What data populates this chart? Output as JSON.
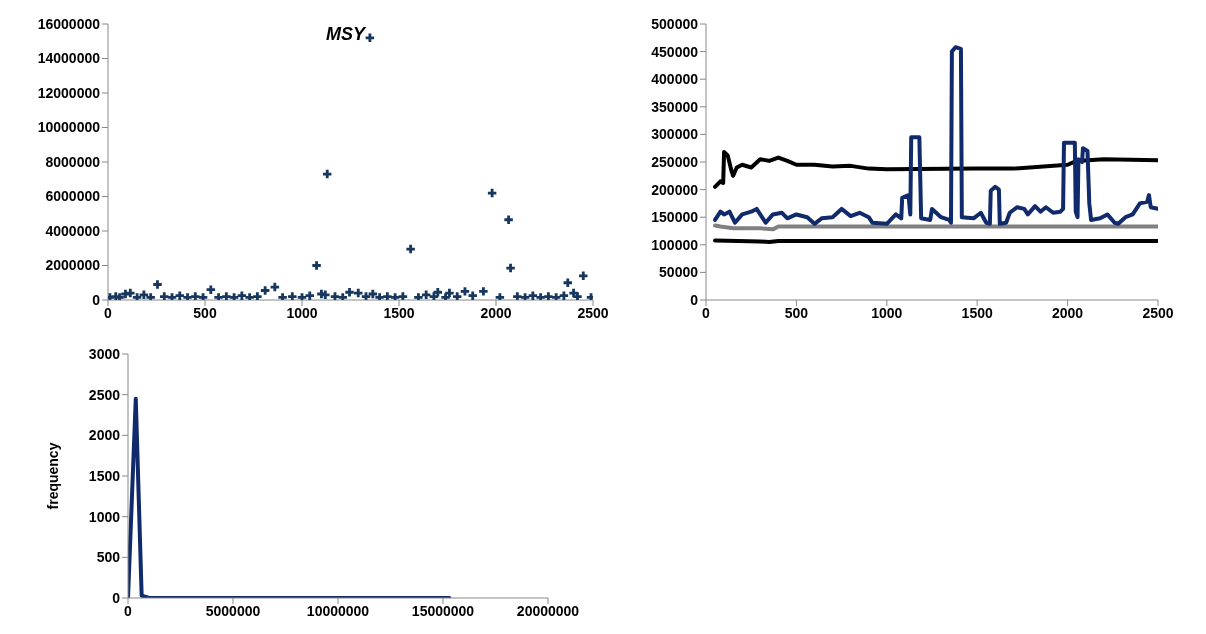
{
  "chart_data": [
    {
      "type": "scatter",
      "title": "MSY",
      "marker": "cross",
      "color": "#17375e",
      "x": [
        10,
        40,
        60,
        90,
        115,
        150,
        185,
        220,
        255,
        290,
        330,
        370,
        410,
        450,
        490,
        530,
        570,
        610,
        650,
        690,
        730,
        770,
        810,
        860,
        900,
        950,
        1000,
        1040,
        1075,
        1100,
        1120,
        1130,
        1170,
        1210,
        1245,
        1290,
        1330,
        1350,
        1365,
        1400,
        1440,
        1480,
        1520,
        1560,
        1600,
        1640,
        1680,
        1700,
        1740,
        1760,
        1800,
        1840,
        1880,
        1935,
        1980,
        2020,
        2065,
        2075,
        2110,
        2150,
        2190,
        2230,
        2270,
        2310,
        2350,
        2370,
        2400,
        2420,
        2450,
        2490
      ],
      "values": [
        150000,
        200000,
        150000,
        350000,
        400000,
        150000,
        300000,
        150000,
        900000,
        200000,
        150000,
        250000,
        150000,
        200000,
        150000,
        600000,
        150000,
        200000,
        150000,
        250000,
        150000,
        200000,
        550000,
        750000,
        150000,
        200000,
        150000,
        250000,
        2000000,
        350000,
        300000,
        7300000,
        200000,
        150000,
        450000,
        400000,
        200000,
        15200000,
        350000,
        150000,
        200000,
        150000,
        200000,
        2950000,
        150000,
        300000,
        200000,
        450000,
        150000,
        400000,
        200000,
        500000,
        250000,
        500000,
        6200000,
        150000,
        4650000,
        1850000,
        200000,
        150000,
        250000,
        150000,
        200000,
        150000,
        250000,
        1000000,
        400000,
        200000,
        1400000,
        150000
      ],
      "xlim": [
        0,
        2500
      ],
      "xticks": [
        0,
        500,
        1000,
        1500,
        2000,
        2500
      ],
      "ylim": [
        0,
        16000000
      ],
      "yticks": [
        0,
        2000000,
        4000000,
        6000000,
        8000000,
        10000000,
        12000000,
        14000000,
        16000000
      ]
    },
    {
      "type": "line",
      "line_style": "solid",
      "xlim": [
        0,
        2500
      ],
      "xticks": [
        0,
        500,
        1000,
        1500,
        2000,
        2500
      ],
      "ylim": [
        0,
        500000
      ],
      "yticks": [
        0,
        50000,
        100000,
        150000,
        200000,
        250000,
        300000,
        350000,
        400000,
        450000,
        500000
      ],
      "series": [
        {
          "color": "#000000",
          "x": [
            50,
            80,
            95,
            100,
            120,
            140,
            150,
            170,
            200,
            250,
            300,
            350,
            400,
            450,
            500,
            600,
            700,
            800,
            900,
            1000,
            1500,
            1700,
            2000,
            2050,
            2200,
            2500
          ],
          "values": [
            205000,
            215000,
            212000,
            268000,
            262000,
            235000,
            225000,
            240000,
            245000,
            240000,
            255000,
            252000,
            258000,
            252000,
            245000,
            245000,
            242000,
            243000,
            238000,
            237000,
            238000,
            238000,
            245000,
            252000,
            255000,
            253000
          ]
        },
        {
          "color": "#808080",
          "x": [
            50,
            80,
            150,
            300,
            370,
            400,
            2500
          ],
          "values": [
            135000,
            133000,
            130000,
            130000,
            128000,
            133000,
            133000
          ]
        },
        {
          "color": "#000000",
          "x": [
            50,
            300,
            350,
            400,
            2500
          ],
          "values": [
            108000,
            106000,
            105000,
            107000,
            107000
          ]
        },
        {
          "color": "#102a6b",
          "x": [
            50,
            80,
            100,
            130,
            160,
            200,
            250,
            280,
            330,
            370,
            420,
            450,
            500,
            560,
            600,
            640,
            700,
            750,
            800,
            850,
            900,
            920,
            1000,
            1050,
            1080,
            1085,
            1120,
            1130,
            1135,
            1180,
            1190,
            1240,
            1250,
            1300,
            1345,
            1355,
            1360,
            1380,
            1410,
            1415,
            1480,
            1520,
            1550,
            1570,
            1575,
            1600,
            1620,
            1625,
            1660,
            1680,
            1720,
            1760,
            1780,
            1820,
            1850,
            1880,
            1920,
            1960,
            1975,
            1980,
            2040,
            2045,
            2055,
            2060,
            2080,
            2085,
            2110,
            2120,
            2130,
            2180,
            2220,
            2260,
            2280,
            2320,
            2360,
            2400,
            2440,
            2450,
            2460,
            2500
          ],
          "values": [
            145000,
            160000,
            155000,
            160000,
            140000,
            155000,
            160000,
            165000,
            140000,
            155000,
            158000,
            148000,
            155000,
            150000,
            138000,
            148000,
            150000,
            165000,
            152000,
            158000,
            150000,
            140000,
            138000,
            155000,
            148000,
            185000,
            190000,
            155000,
            295000,
            295000,
            148000,
            145000,
            165000,
            150000,
            145000,
            140000,
            450000,
            458000,
            455000,
            150000,
            148000,
            158000,
            140000,
            138000,
            198000,
            205000,
            200000,
            138000,
            140000,
            158000,
            168000,
            165000,
            155000,
            170000,
            160000,
            168000,
            158000,
            160000,
            165000,
            285000,
            285000,
            160000,
            150000,
            255000,
            250000,
            275000,
            270000,
            175000,
            145000,
            148000,
            155000,
            140000,
            138000,
            150000,
            155000,
            175000,
            178000,
            190000,
            168000,
            165000
          ]
        }
      ]
    },
    {
      "type": "line",
      "ylabel": "frequency",
      "color": "#102a6b",
      "line_style": "solid",
      "x": [
        0,
        370000,
        650000,
        1000000,
        15300000
      ],
      "values": [
        0,
        2450,
        30,
        0,
        0
      ],
      "xlim": [
        0,
        20000000
      ],
      "xticks": [
        0,
        5000000,
        10000000,
        15000000,
        20000000
      ],
      "ylim": [
        0,
        3000
      ],
      "yticks": [
        0,
        500,
        1000,
        1500,
        2000,
        2500,
        3000
      ]
    }
  ]
}
